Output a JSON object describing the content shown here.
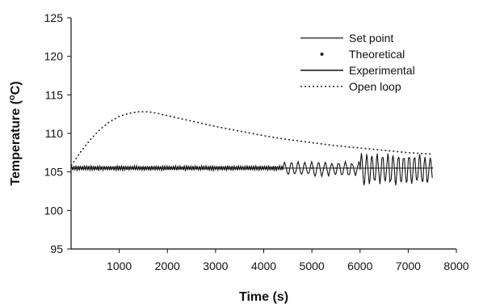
{
  "chart_data": {
    "type": "line",
    "title": "",
    "xlabel": "Time (s)",
    "ylabel_main": "Temperature (",
    "ylabel_sup": "o",
    "ylabel_tail": "C)",
    "xlim": [
      0,
      8000
    ],
    "ylim": [
      95,
      125
    ],
    "x_ticks": [
      1000,
      2000,
      3000,
      4000,
      5000,
      6000,
      7000,
      8000
    ],
    "x_tick_labels": [
      "1000",
      "2000",
      "3000",
      "4000",
      "5000",
      "6000",
      "7000",
      "8000"
    ],
    "y_ticks": [
      95,
      100,
      105,
      110,
      115,
      120,
      125
    ],
    "y_tick_labels": [
      "95",
      "100",
      "105",
      "110",
      "115",
      "120",
      "125"
    ],
    "grid": false,
    "legend_position": "top-right",
    "series": [
      {
        "name": "Set point",
        "style": "solid",
        "color": "#777777",
        "x": [
          0,
          7500
        ],
        "y": [
          105.5,
          105.5
        ]
      },
      {
        "name": "Theoretical",
        "style": "marker",
        "color": "#222222",
        "x": [
          0,
          7500
        ],
        "y": [
          105.5,
          105.5
        ]
      },
      {
        "name": "Experimental",
        "style": "solid",
        "color": "#111111",
        "segments": [
          {
            "x_start": 0,
            "x_end": 4400,
            "amplitude": 0.25,
            "period": 45,
            "offset": 105.5
          },
          {
            "x_start": 4400,
            "x_end": 6000,
            "amplitude": 0.8,
            "period": 140,
            "offset": 105.4
          },
          {
            "x_start": 6000,
            "x_end": 7500,
            "amplitude": 1.8,
            "period": 110,
            "offset": 105.3
          }
        ]
      },
      {
        "name": "Open loop",
        "style": "dotted",
        "color": "#222222",
        "x": [
          0,
          100,
          200,
          400,
          600,
          800,
          1000,
          1200,
          1400,
          1600,
          1800,
          2000,
          2500,
          3000,
          3500,
          4000,
          4500,
          5000,
          5500,
          6000,
          6500,
          7000,
          7500
        ],
        "y": [
          105.8,
          106.7,
          107.6,
          109.2,
          110.5,
          111.5,
          112.2,
          112.6,
          112.8,
          112.8,
          112.6,
          112.3,
          111.6,
          110.9,
          110.3,
          109.7,
          109.2,
          108.8,
          108.4,
          108.1,
          107.8,
          107.5,
          107.3
        ]
      }
    ]
  }
}
